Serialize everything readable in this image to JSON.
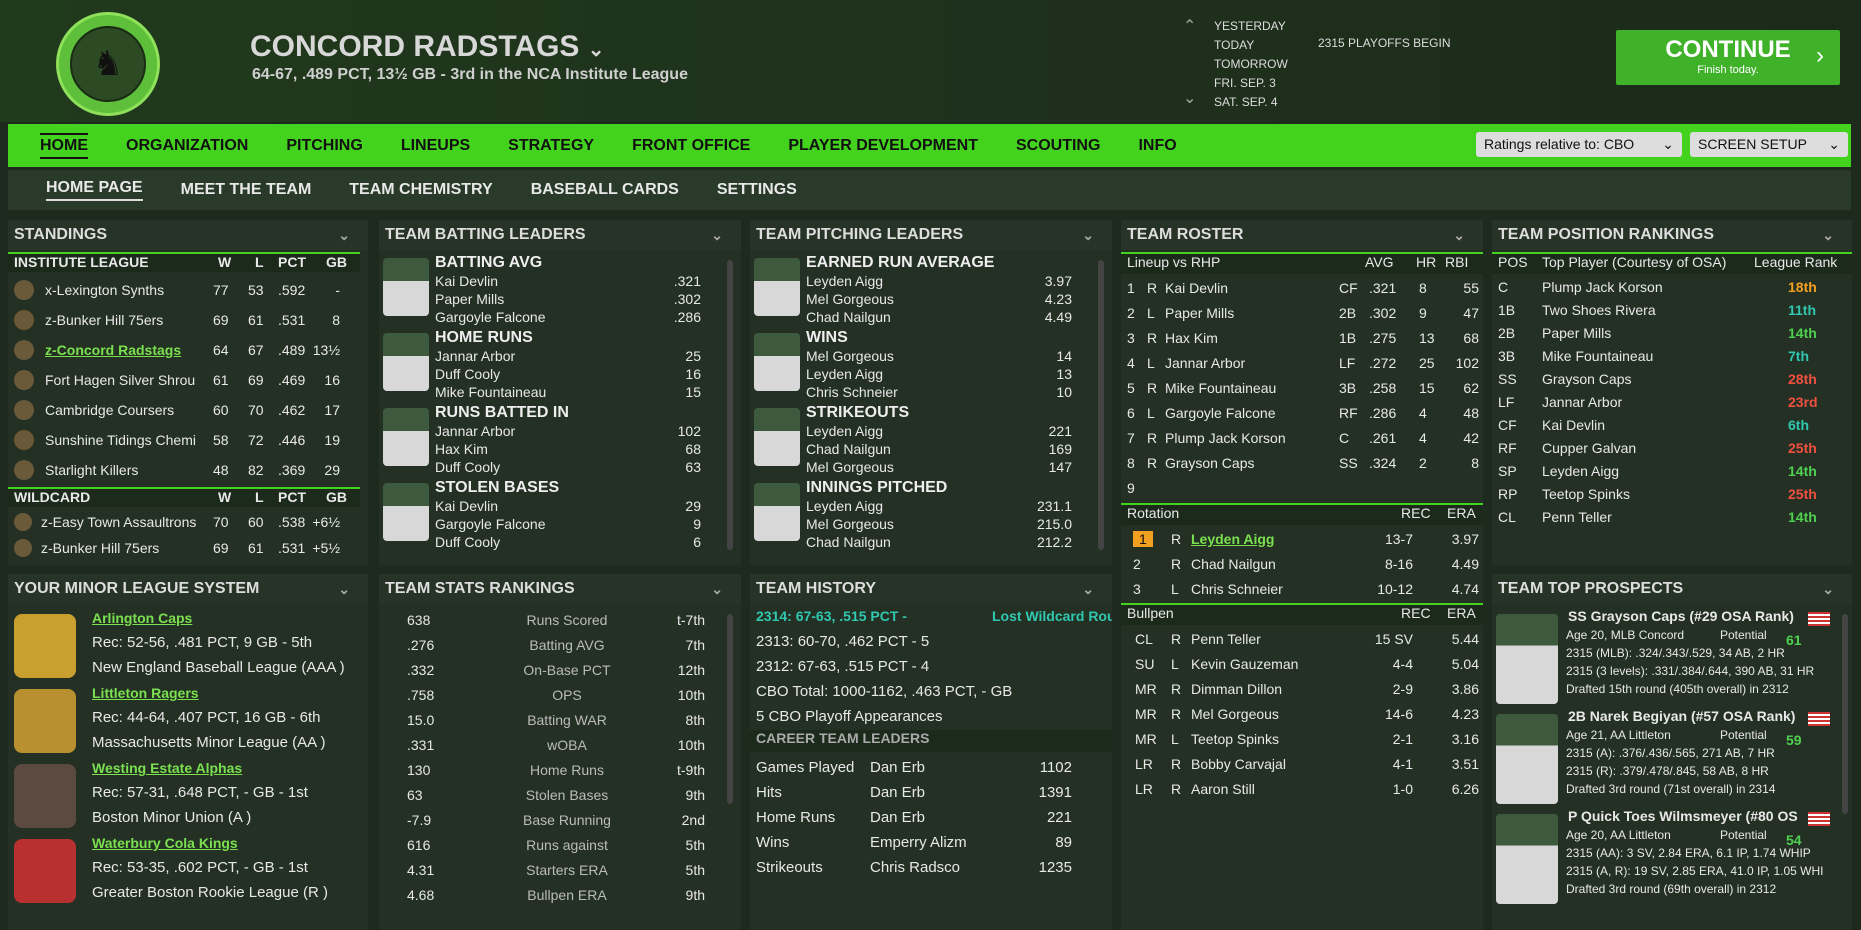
{
  "header": {
    "team_name": "CONCORD RADSTAGS",
    "team_sub": "64-67, .489 PCT, 13½ GB - 3rd in the NCA Institute League",
    "dates": [
      "YESTERDAY",
      "TODAY",
      "TOMORROW",
      "FRI. SEP. 3",
      "SAT. SEP. 4"
    ],
    "event": "2315 PLAYOFFS BEGIN",
    "continue": "CONTINUE",
    "continue_sub": "Finish today."
  },
  "nav": {
    "main": [
      "HOME",
      "ORGANIZATION",
      "PITCHING",
      "LINEUPS",
      "STRATEGY",
      "FRONT OFFICE",
      "PLAYER DEVELOPMENT",
      "SCOUTING",
      "INFO"
    ],
    "ratings": "Ratings relative to: CBO",
    "setup": "SCREEN SETUP",
    "sub": [
      "HOME PAGE",
      "MEET THE TEAM",
      "TEAM CHEMISTRY",
      "BASEBALL CARDS",
      "SETTINGS"
    ]
  },
  "standings": {
    "title": "STANDINGS",
    "league": "INSTITUTE LEAGUE",
    "wildcard": "WILDCARD",
    "cols": [
      "W",
      "L",
      "PCT",
      "GB"
    ],
    "rows": [
      [
        "x-Lexington Synths",
        "77",
        "53",
        ".592",
        "-"
      ],
      [
        "z-Bunker Hill 75ers",
        "69",
        "61",
        ".531",
        "8"
      ],
      [
        "z-Concord Radstags",
        "64",
        "67",
        ".489",
        "13½"
      ],
      [
        "Fort Hagen Silver Shrou",
        "61",
        "69",
        ".469",
        "16"
      ],
      [
        "Cambridge Coursers",
        "60",
        "70",
        ".462",
        "17"
      ],
      [
        "Sunshine Tidings Chemi",
        "58",
        "72",
        ".446",
        "19"
      ],
      [
        "Starlight Killers",
        "48",
        "82",
        ".369",
        "29"
      ]
    ],
    "wc_rows": [
      [
        "z-Easy Town Assaultrons",
        "70",
        "60",
        ".538",
        "+6½"
      ],
      [
        "z-Bunker Hill 75ers",
        "69",
        "61",
        ".531",
        "+5½"
      ]
    ]
  },
  "batting": {
    "title": "TEAM BATTING LEADERS",
    "groups": [
      {
        "cat": "BATTING AVG",
        "p": [
          [
            "Kai Devlin",
            ".321"
          ],
          [
            "Paper Mills",
            ".302"
          ],
          [
            "Gargoyle Falcone",
            ".286"
          ]
        ]
      },
      {
        "cat": "HOME RUNS",
        "p": [
          [
            "Jannar Arbor",
            "25"
          ],
          [
            "Duff Cooly",
            "16"
          ],
          [
            "Mike Fountaineau",
            "15"
          ]
        ]
      },
      {
        "cat": "RUNS BATTED IN",
        "p": [
          [
            "Jannar Arbor",
            "102"
          ],
          [
            "Hax Kim",
            "68"
          ],
          [
            "Duff Cooly",
            "63"
          ]
        ]
      },
      {
        "cat": "STOLEN BASES",
        "p": [
          [
            "Kai Devlin",
            "29"
          ],
          [
            "Gargoyle Falcone",
            "9"
          ],
          [
            "Duff Cooly",
            "6"
          ]
        ]
      }
    ]
  },
  "pitching": {
    "title": "TEAM PITCHING LEADERS",
    "groups": [
      {
        "cat": "EARNED RUN AVERAGE",
        "p": [
          [
            "Leyden Aigg",
            "3.97"
          ],
          [
            "Mel Gorgeous",
            "4.23"
          ],
          [
            "Chad Nailgun",
            "4.49"
          ]
        ]
      },
      {
        "cat": "WINS",
        "p": [
          [
            "Mel Gorgeous",
            "14"
          ],
          [
            "Leyden Aigg",
            "13"
          ],
          [
            "Chris Schneier",
            "10"
          ]
        ]
      },
      {
        "cat": "STRIKEOUTS",
        "p": [
          [
            "Leyden Aigg",
            "221"
          ],
          [
            "Chad Nailgun",
            "169"
          ],
          [
            "Mel Gorgeous",
            "147"
          ]
        ]
      },
      {
        "cat": "INNINGS PITCHED",
        "p": [
          [
            "Leyden Aigg",
            "231.1"
          ],
          [
            "Mel Gorgeous",
            "215.0"
          ],
          [
            "Chad Nailgun",
            "212.2"
          ]
        ]
      }
    ]
  },
  "roster": {
    "title": "TEAM ROSTER",
    "lineup_h": [
      "Lineup vs RHP",
      "AVG",
      "HR",
      "RBI"
    ],
    "lineup": [
      [
        "1",
        "R",
        "Kai Devlin",
        "CF",
        ".321",
        "8",
        "55"
      ],
      [
        "2",
        "L",
        "Paper Mills",
        "2B",
        ".302",
        "9",
        "47"
      ],
      [
        "3",
        "R",
        "Hax Kim",
        "1B",
        ".275",
        "13",
        "68"
      ],
      [
        "4",
        "L",
        "Jannar Arbor",
        "LF",
        ".272",
        "25",
        "102"
      ],
      [
        "5",
        "R",
        "Mike Fountaineau",
        "3B",
        ".258",
        "15",
        "62"
      ],
      [
        "6",
        "L",
        "Gargoyle Falcone",
        "RF",
        ".286",
        "4",
        "48"
      ],
      [
        "7",
        "R",
        "Plump Jack Korson",
        "C",
        ".261",
        "4",
        "42"
      ],
      [
        "8",
        "R",
        "Grayson Caps",
        "SS",
        ".324",
        "2",
        "8"
      ],
      [
        "9",
        "",
        "",
        "",
        "",
        "",
        ""
      ]
    ],
    "rot_h": [
      "Rotation",
      "REC",
      "ERA"
    ],
    "rotation": [
      [
        "1",
        "R",
        "Leyden Aigg",
        "13-7",
        "3.97"
      ],
      [
        "2",
        "R",
        "Chad Nailgun",
        "8-16",
        "4.49"
      ],
      [
        "3",
        "L",
        "Chris Schneier",
        "10-12",
        "4.74"
      ]
    ],
    "bull_h": [
      "Bullpen",
      "REC",
      "ERA"
    ],
    "bullpen": [
      [
        "CL",
        "R",
        "Penn Teller",
        "15 SV",
        "5.44"
      ],
      [
        "SU",
        "L",
        "Kevin Gauzeman",
        "4-4",
        "5.04"
      ],
      [
        "MR",
        "R",
        "Dimman Dillon",
        "2-9",
        "3.86"
      ],
      [
        "MR",
        "R",
        "Mel Gorgeous",
        "14-6",
        "4.23"
      ],
      [
        "MR",
        "L",
        "Teetop Spinks",
        "2-1",
        "3.16"
      ],
      [
        "LR",
        "R",
        "Bobby Carvajal",
        "4-1",
        "3.51"
      ],
      [
        "LR",
        "R",
        "Aaron Still",
        "1-0",
        "6.26"
      ]
    ]
  },
  "positions": {
    "title": "TEAM POSITION RANKINGS",
    "h": [
      "POS",
      "Top Player (Courtesy of OSA)",
      "League Rank"
    ],
    "rows": [
      [
        "C",
        "Plump Jack Korson",
        "18th",
        "or"
      ],
      [
        "1B",
        "Two Shoes Rivera",
        "11th",
        "cy"
      ],
      [
        "2B",
        "Paper Mills",
        "14th",
        "gr"
      ],
      [
        "3B",
        "Mike Fountaineau",
        "7th",
        "cy"
      ],
      [
        "SS",
        "Grayson Caps",
        "28th",
        "rd"
      ],
      [
        "LF",
        "Jannar Arbor",
        "23rd",
        "rd"
      ],
      [
        "CF",
        "Kai Devlin",
        "6th",
        "cy"
      ],
      [
        "RF",
        "Cupper Galvan",
        "25th",
        "rd"
      ],
      [
        "SP",
        "Leyden Aigg",
        "14th",
        "gr"
      ],
      [
        "RP",
        "Teetop Spinks",
        "25th",
        "rd"
      ],
      [
        "CL",
        "Penn Teller",
        "14th",
        "gr"
      ]
    ]
  },
  "minors": {
    "title": "YOUR MINOR LEAGUE SYSTEM",
    "teams": [
      {
        "name": "Arlington Caps",
        "rec": "Rec: 52-56, .481 PCT, 9 GB - 5th",
        "lg": "New England Baseball League (AAA )"
      },
      {
        "name": "Littleton Ragers",
        "rec": "Rec: 44-64, .407 PCT, 16 GB - 6th",
        "lg": "Massachusetts Minor League (AA )"
      },
      {
        "name": "Westing Estate Alphas",
        "rec": "Rec: 57-31, .648 PCT, - GB - 1st",
        "lg": "Boston Minor Union (A )"
      },
      {
        "name": "Waterbury Cola Kings",
        "rec": "Rec: 53-35, .602 PCT, - GB - 1st",
        "lg": "Greater Boston Rookie League (R )"
      }
    ]
  },
  "stats": {
    "title": "TEAM STATS RANKINGS",
    "rows": [
      [
        "638",
        "Runs Scored",
        "t-7th"
      ],
      [
        ".276",
        "Batting AVG",
        "7th"
      ],
      [
        ".332",
        "On-Base PCT",
        "12th"
      ],
      [
        ".758",
        "OPS",
        "10th"
      ],
      [
        "15.0",
        "Batting WAR",
        "8th"
      ],
      [
        ".331",
        "wOBA",
        "10th"
      ],
      [
        "130",
        "Home Runs",
        "t-9th"
      ],
      [
        "63",
        "Stolen Bases",
        "9th"
      ],
      [
        "-7.9",
        "Base Running",
        "2nd"
      ],
      [
        "616",
        "Runs against",
        "5th"
      ],
      [
        "4.31",
        "Starters ERA",
        "5th"
      ],
      [
        "4.68",
        "Bullpen ERA",
        "9th"
      ]
    ]
  },
  "history": {
    "title": "TEAM HISTORY",
    "l1": "2314: 67-63, .515 PCT -",
    "l1b": "Lost Wildcard Rou",
    "l2": "2313: 60-70, .462 PCT - 5",
    "l3": "2312: 67-63, .515 PCT - 4",
    "l4": "CBO Total: 1000-1162, .463 PCT, - GB",
    "l5": "5 CBO Playoff Appearances",
    "leaders_h": "CAREER TEAM LEADERS",
    "leaders": [
      [
        "Games Played",
        "Dan Erb",
        "1102"
      ],
      [
        "Hits",
        "Dan Erb",
        "1391"
      ],
      [
        "Home Runs",
        "Dan Erb",
        "221"
      ],
      [
        "Wins",
        "Emperry Alizm",
        "89"
      ],
      [
        "Strikeouts",
        "Chris Radsco",
        "1235"
      ]
    ]
  },
  "prospects": {
    "title": "TEAM TOP PROSPECTS",
    "list": [
      {
        "name": "SS Grayson Caps (#29 OSA Rank)",
        "age": "Age 20, MLB Concord",
        "pot": "Potential",
        "pv": "61",
        "l1": "2315 (MLB): .324/.343/.529, 34 AB, 2 HR",
        "l2": "2315 (3 levels): .331/.384/.644, 390 AB, 31 HR",
        "l3": "Drafted 15th round (405th overall) in 2312"
      },
      {
        "name": "2B Narek Begiyan (#57 OSA Rank)",
        "age": "Age 21, AA Littleton",
        "pot": "Potential",
        "pv": "59",
        "l1": "2315 (A): .376/.436/.565, 271 AB, 7 HR",
        "l2": "2315 (R): .379/.478/.845, 58 AB, 8 HR",
        "l3": "Drafted 3rd round (71st overall) in 2314"
      },
      {
        "name": "P Quick Toes Wilmsmeyer (#80 OS",
        "age": "Age 20, AA Littleton",
        "pot": "Potential",
        "pv": "54",
        "l1": "2315 (AA): 3 SV, 2.84 ERA, 6.1 IP, 1.74 WHIP",
        "l2": "2315 (A, R): 19 SV, 2.85 ERA, 41.0 IP, 1.05 WHI",
        "l3": "Drafted 3rd round (69th overall) in 2312"
      }
    ]
  }
}
